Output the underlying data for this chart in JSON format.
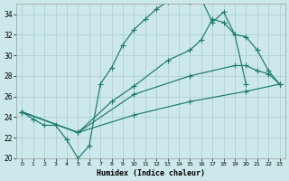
{
  "xlabel": "Humidex (Indice chaleur)",
  "xlim": [
    -0.5,
    23.5
  ],
  "ylim": [
    20,
    35
  ],
  "yticks": [
    20,
    22,
    24,
    26,
    28,
    30,
    32,
    34
  ],
  "xticks": [
    0,
    1,
    2,
    3,
    4,
    5,
    6,
    7,
    8,
    9,
    10,
    11,
    12,
    13,
    14,
    15,
    16,
    17,
    18,
    19,
    20,
    21,
    22,
    23
  ],
  "bg_color": "#cce8ea",
  "grid_color": "#aacccc",
  "line_color": "#1a7a6e",
  "line1_x": [
    0,
    1,
    2,
    3,
    4,
    5,
    6,
    7,
    8,
    9,
    10,
    11,
    12,
    13,
    14,
    15,
    16,
    17,
    18,
    19,
    20
  ],
  "line1_y": [
    24.5,
    23.8,
    23.2,
    23.2,
    21.8,
    20.0,
    21.2,
    27.2,
    28.8,
    31.0,
    32.5,
    33.5,
    34.5,
    35.2,
    35.5,
    35.2,
    35.5,
    33.2,
    34.2,
    32.0,
    27.2
  ],
  "line2_x": [
    0,
    5,
    8,
    10,
    13,
    15,
    16,
    17,
    18,
    19,
    20,
    21,
    22,
    23
  ],
  "line2_y": [
    24.5,
    22.5,
    25.5,
    27.0,
    29.5,
    30.5,
    31.5,
    33.5,
    33.2,
    32.0,
    31.8,
    30.5,
    28.5,
    27.2
  ],
  "line3_x": [
    0,
    5,
    10,
    15,
    19,
    20,
    21,
    22,
    23
  ],
  "line3_y": [
    24.5,
    22.5,
    26.2,
    28.0,
    29.0,
    29.0,
    28.5,
    28.2,
    27.2
  ],
  "line4_x": [
    0,
    5,
    10,
    15,
    20,
    23
  ],
  "line4_y": [
    24.5,
    22.5,
    24.2,
    25.5,
    26.5,
    27.2
  ]
}
